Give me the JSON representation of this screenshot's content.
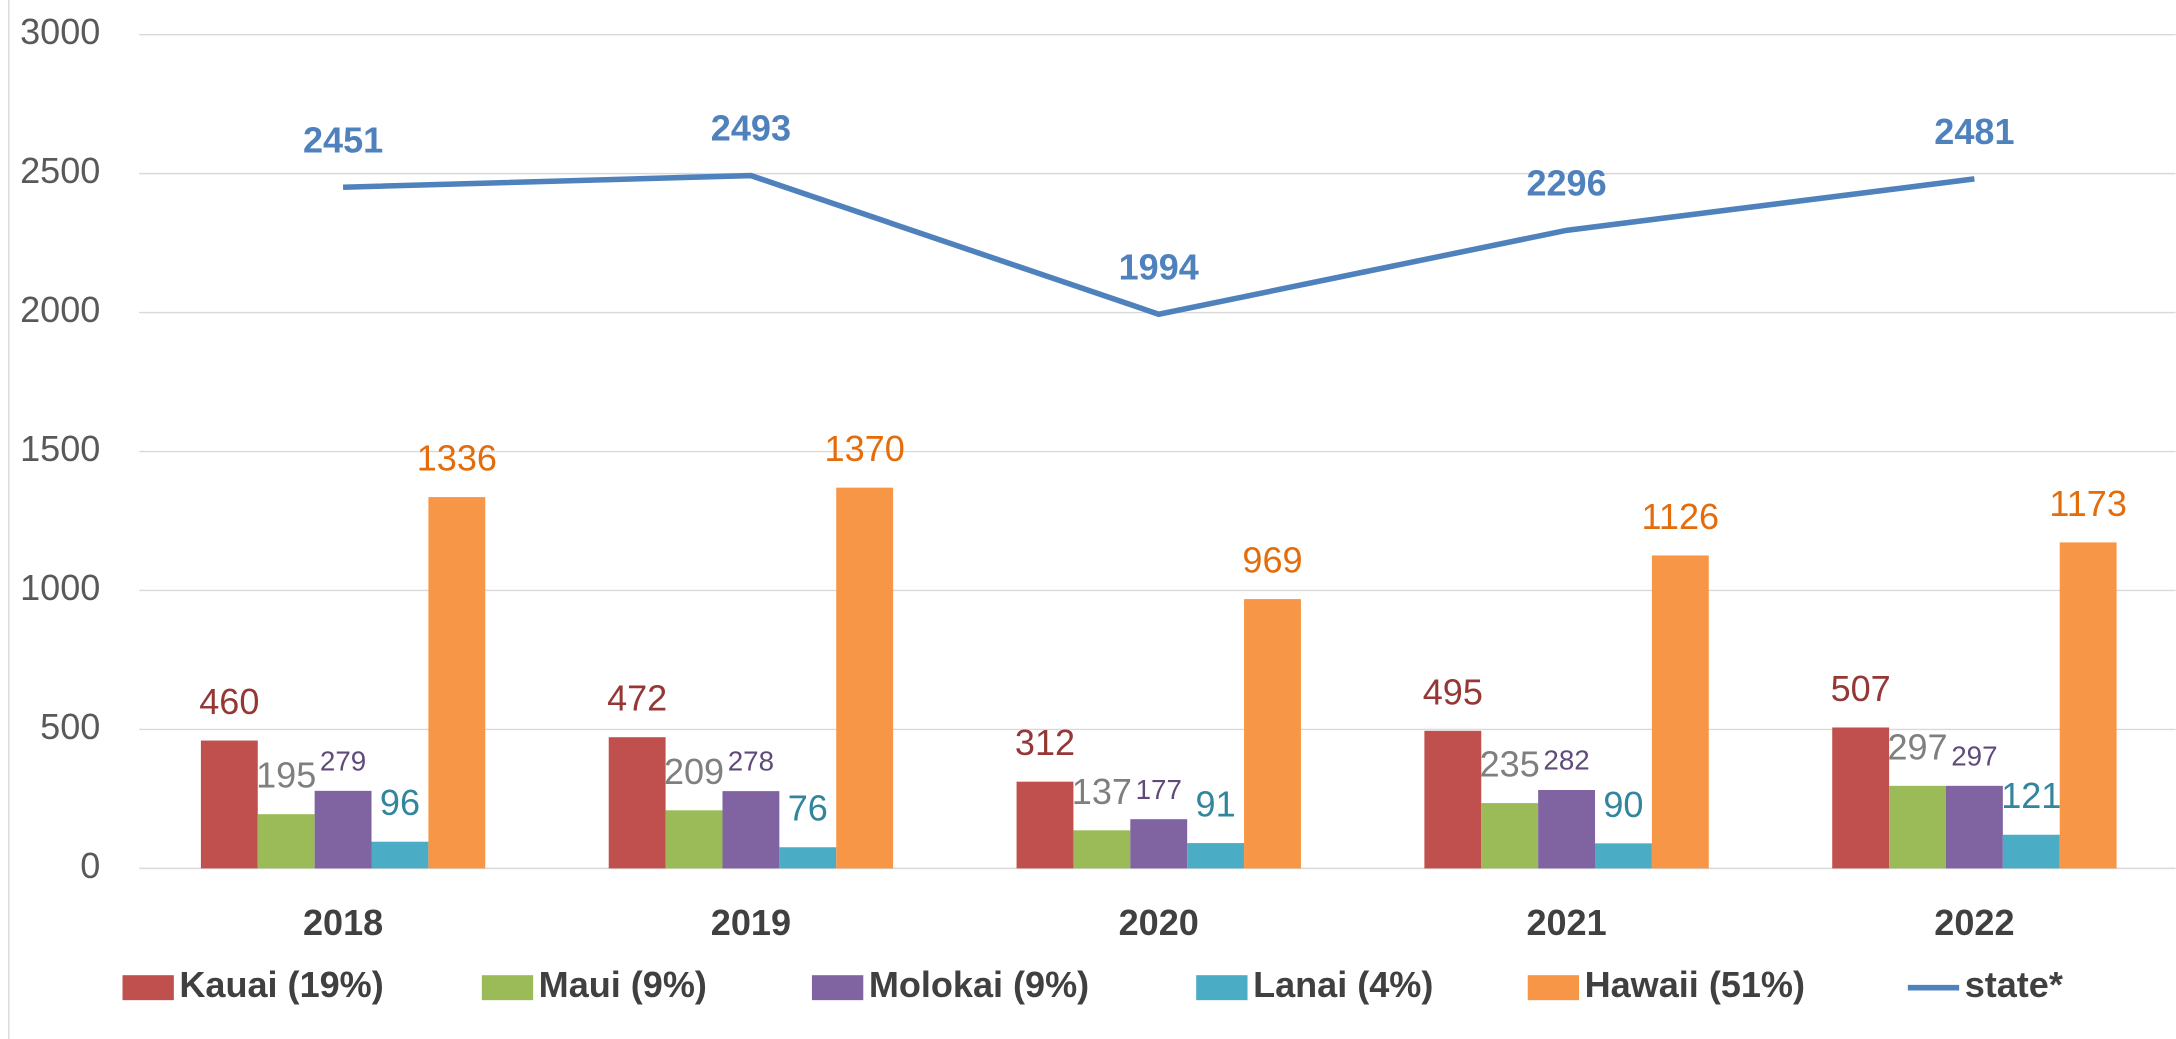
{
  "chart_data": {
    "type": "bar_line",
    "categories": [
      "2018",
      "2019",
      "2020",
      "2021",
      "2022"
    ],
    "ylim": [
      0,
      3000
    ],
    "yticks": [
      0,
      500,
      1000,
      1500,
      2000,
      2500,
      3000
    ],
    "grid": true,
    "legend": "bottom",
    "series": [
      {
        "name": "Kauai (19%)",
        "type": "bar",
        "color": "#c0504d",
        "label_color": "#953735",
        "values": [
          460,
          472,
          312,
          495,
          507
        ]
      },
      {
        "name": "Maui (9%)",
        "type": "bar",
        "color": "#9bbb59",
        "label_color": "#7f7f7f",
        "values": [
          195,
          209,
          137,
          235,
          297
        ]
      },
      {
        "name": "Molokai (9%)",
        "type": "bar",
        "color": "#8064a2",
        "label_color": "#604a7b",
        "values": [
          279,
          278,
          177,
          282,
          297
        ]
      },
      {
        "name": "Lanai (4%)",
        "type": "bar",
        "color": "#4bacc6",
        "label_color": "#31859c",
        "values": [
          96,
          76,
          91,
          90,
          121
        ]
      },
      {
        "name": "Hawaii (51%)",
        "type": "bar",
        "color": "#f79646",
        "label_color": "#e46c0a",
        "values": [
          1336,
          1370,
          969,
          1126,
          1173
        ]
      },
      {
        "name": "state*",
        "type": "line",
        "color": "#4f81bd",
        "label_color": "#4f81bd",
        "values": [
          2451,
          2493,
          1994,
          2296,
          2481
        ]
      }
    ]
  }
}
